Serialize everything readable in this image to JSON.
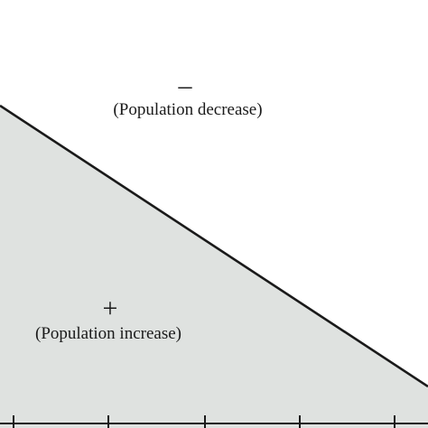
{
  "regions": {
    "upper": {
      "sign": "–",
      "label": "(Population decrease)"
    },
    "lower": {
      "sign": "+",
      "label": "(Population increase)"
    }
  },
  "colors": {
    "fill": "#dfe2e0",
    "line": "#1a1a1a",
    "background": "#ffffff"
  }
}
